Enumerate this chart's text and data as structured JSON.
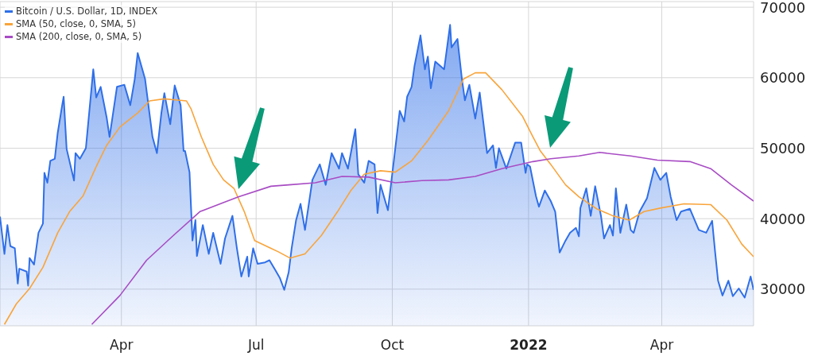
{
  "chart_data": {
    "type": "area",
    "xlim": [
      "2021-01-09",
      "2022-06-02"
    ],
    "xticks": [
      {
        "value": "2021-04-01",
        "label": "Apr"
      },
      {
        "value": "2021-07-01",
        "label": "Jul"
      },
      {
        "value": "2021-10-01",
        "label": "Oct"
      },
      {
        "value": "2022-01-01",
        "label": "2022"
      },
      {
        "value": "2022-04-01",
        "label": "Apr"
      }
    ],
    "ylim": [
      24800,
      70800
    ],
    "yticks": [
      30000,
      40000,
      50000,
      60000,
      70000
    ],
    "grid": true,
    "legend": "top left",
    "series": [
      {
        "name": "Bitcoin / U.S. Dollar, 1D, INDEX",
        "color": "#2f6fe8",
        "x": [
          "2021-01-09",
          "2021-01-12",
          "2021-01-14",
          "2021-01-16",
          "2021-01-19",
          "2021-01-21",
          "2021-01-22",
          "2021-01-27",
          "2021-01-28",
          "2021-01-29",
          "2021-02-01",
          "2021-02-04",
          "2021-02-07",
          "2021-02-08",
          "2021-02-10",
          "2021-02-12",
          "2021-02-15",
          "2021-02-17",
          "2021-02-20",
          "2021-02-21",
          "2021-02-23",
          "2021-02-28",
          "2021-03-01",
          "2021-03-04",
          "2021-03-08",
          "2021-03-13",
          "2021-03-15",
          "2021-03-18",
          "2021-03-22",
          "2021-03-24",
          "2021-03-29",
          "2021-04-03",
          "2021-04-07",
          "2021-04-10",
          "2021-04-12",
          "2021-04-17",
          "2021-04-22",
          "2021-04-25",
          "2021-04-28",
          "2021-04-30",
          "2021-05-04",
          "2021-05-07",
          "2021-05-11",
          "2021-05-13",
          "2021-05-14",
          "2021-05-17",
          "2021-05-19",
          "2021-05-21",
          "2021-05-22",
          "2021-05-26",
          "2021-05-30",
          "2021-06-02",
          "2021-06-07",
          "2021-06-10",
          "2021-06-15",
          "2021-06-18",
          "2021-06-21",
          "2021-06-25",
          "2021-06-26",
          "2021-06-29",
          "2021-07-02",
          "2021-07-07",
          "2021-07-10",
          "2021-07-14",
          "2021-07-17",
          "2021-07-20",
          "2021-07-23",
          "2021-07-25",
          "2021-07-28",
          "2021-07-31",
          "2021-08-03",
          "2021-08-08",
          "2021-08-13",
          "2021-08-17",
          "2021-08-21",
          "2021-08-26",
          "2021-08-28",
          "2021-09-01",
          "2021-09-06",
          "2021-09-08",
          "2021-09-12",
          "2021-09-15",
          "2021-09-19",
          "2021-09-21",
          "2021-09-23",
          "2021-09-28",
          "2021-10-02",
          "2021-10-06",
          "2021-10-09",
          "2021-10-11",
          "2021-10-14",
          "2021-10-16",
          "2021-10-20",
          "2021-10-23",
          "2021-10-25",
          "2021-10-27",
          "2021-10-30",
          "2021-11-05",
          "2021-11-09",
          "2021-11-10",
          "2021-11-14",
          "2021-11-17",
          "2021-11-19",
          "2021-11-22",
          "2021-11-26",
          "2021-11-29",
          "2021-12-04",
          "2021-12-08",
          "2021-12-10",
          "2021-12-12",
          "2021-12-17",
          "2021-12-23",
          "2021-12-27",
          "2021-12-30",
          "2021-12-31",
          "2022-01-02",
          "2022-01-06",
          "2022-01-08",
          "2022-01-12",
          "2022-01-16",
          "2022-01-19",
          "2022-01-22",
          "2022-01-26",
          "2022-01-29",
          "2022-02-02",
          "2022-02-04",
          "2022-02-05",
          "2022-02-09",
          "2022-02-12",
          "2022-02-15",
          "2022-02-19",
          "2022-02-21",
          "2022-02-25",
          "2022-02-27",
          "2022-03-01",
          "2022-03-04",
          "2022-03-08",
          "2022-03-11",
          "2022-03-13",
          "2022-03-17",
          "2022-03-22",
          "2022-03-27",
          "2022-03-31",
          "2022-04-04",
          "2022-04-07",
          "2022-04-11",
          "2022-04-14",
          "2022-04-20",
          "2022-04-26",
          "2022-05-01",
          "2022-05-05",
          "2022-05-07",
          "2022-05-09",
          "2022-05-12",
          "2022-05-16",
          "2022-05-19",
          "2022-05-23",
          "2022-05-27",
          "2022-05-31",
          "2022-06-02"
        ],
        "values": [
          40300,
          35000,
          39100,
          36100,
          35800,
          30800,
          32900,
          32500,
          30500,
          34400,
          33500,
          38000,
          39300,
          46500,
          45100,
          48200,
          48500,
          52200,
          56100,
          57300,
          49900,
          45400,
          49300,
          48500,
          50000,
          61200,
          57200,
          58700,
          54400,
          51600,
          58700,
          59000,
          56100,
          59800,
          63500,
          59800,
          51600,
          49300,
          55000,
          57800,
          53400,
          58900,
          56100,
          49600,
          49600,
          46600,
          36900,
          39800,
          34700,
          39100,
          35000,
          38000,
          33600,
          37200,
          40400,
          35800,
          31800,
          34600,
          31800,
          35800,
          33600,
          33800,
          34100,
          32700,
          31600,
          29900,
          32400,
          35800,
          39800,
          42100,
          38400,
          45500,
          47700,
          44800,
          49300,
          47100,
          49300,
          47100,
          52700,
          46300,
          45100,
          48200,
          47700,
          40800,
          44800,
          41200,
          48200,
          55300,
          53800,
          57300,
          58700,
          61700,
          66000,
          61200,
          63000,
          58500,
          62300,
          61200,
          67500,
          64300,
          65500,
          59800,
          56800,
          59000,
          54200,
          57900,
          49300,
          50400,
          47200,
          50000,
          47100,
          50800,
          50800,
          46500,
          47700,
          47400,
          43200,
          41700,
          44000,
          42500,
          41000,
          35200,
          36900,
          38000,
          38700,
          37500,
          41500,
          44300,
          40400,
          44600,
          40300,
          37200,
          39100,
          37600,
          44300,
          38000,
          42000,
          38400,
          38000,
          41000,
          42900,
          47200,
          45500,
          46500,
          43100,
          39800,
          41000,
          41400,
          38400,
          38000,
          39700,
          35300,
          31200,
          29100,
          31200,
          29000,
          30100,
          28800,
          31800,
          29900
        ]
      },
      {
        "name": "SMA (50, close, 0, SMA, 5)",
        "type": "line",
        "color": "#f9a43a",
        "x": [
          "2021-01-12",
          "2021-01-20",
          "2021-01-29",
          "2021-02-07",
          "2021-02-17",
          "2021-02-25",
          "2021-03-06",
          "2021-03-15",
          "2021-03-22",
          "2021-03-31",
          "2021-04-12",
          "2021-04-20",
          "2021-04-30",
          "2021-05-15",
          "2021-05-18",
          "2021-05-25",
          "2021-06-02",
          "2021-06-09",
          "2021-06-16",
          "2021-06-23",
          "2021-06-30",
          "2021-07-11",
          "2021-07-16",
          "2021-07-24",
          "2021-08-03",
          "2021-08-14",
          "2021-08-25",
          "2021-09-03",
          "2021-09-12",
          "2021-09-23",
          "2021-10-03",
          "2021-10-14",
          "2021-10-25",
          "2021-11-08",
          "2021-11-18",
          "2021-11-26",
          "2021-12-03",
          "2021-12-14",
          "2021-12-28",
          "2022-01-04",
          "2022-01-09",
          "2022-01-16",
          "2022-01-26",
          "2022-02-04",
          "2022-02-16",
          "2022-02-27",
          "2022-03-10",
          "2022-03-20",
          "2022-03-31",
          "2022-04-16",
          "2022-05-04",
          "2022-05-15",
          "2022-05-25",
          "2022-06-02"
        ],
        "values": [
          25000,
          27900,
          30100,
          33100,
          38000,
          41000,
          43200,
          47400,
          50400,
          53000,
          55000,
          56700,
          57000,
          56700,
          55600,
          51600,
          47700,
          45500,
          44300,
          41000,
          36900,
          35800,
          35300,
          34400,
          35000,
          37600,
          41000,
          44000,
          46300,
          46800,
          46600,
          48200,
          51100,
          55300,
          59800,
          60700,
          60700,
          58300,
          54500,
          51600,
          49600,
          47700,
          44800,
          43100,
          41400,
          40400,
          39800,
          41000,
          41500,
          42100,
          42000,
          39800,
          36400,
          34600
        ]
      },
      {
        "name": "SMA (200, close, 0, SMA, 5)",
        "type": "line",
        "color": "#a84cc4",
        "x": [
          "2021-03-12",
          "2021-03-31",
          "2021-04-18",
          "2021-05-06",
          "2021-05-24",
          "2021-06-19",
          "2021-07-11",
          "2021-07-23",
          "2021-08-10",
          "2021-08-28",
          "2021-09-15",
          "2021-10-03",
          "2021-10-21",
          "2021-11-08",
          "2021-11-26",
          "2021-12-14",
          "2022-01-04",
          "2022-01-16",
          "2022-02-04",
          "2022-02-18",
          "2022-03-11",
          "2022-03-29",
          "2022-04-20",
          "2022-05-04",
          "2022-05-18",
          "2022-06-02"
        ],
        "values": [
          25000,
          29100,
          34100,
          37600,
          41000,
          43100,
          44600,
          44800,
          45100,
          46000,
          45900,
          45100,
          45400,
          45500,
          46000,
          47100,
          48100,
          48500,
          48900,
          49400,
          48900,
          48300,
          48100,
          47100,
          44800,
          42500
        ]
      }
    ]
  }
}
